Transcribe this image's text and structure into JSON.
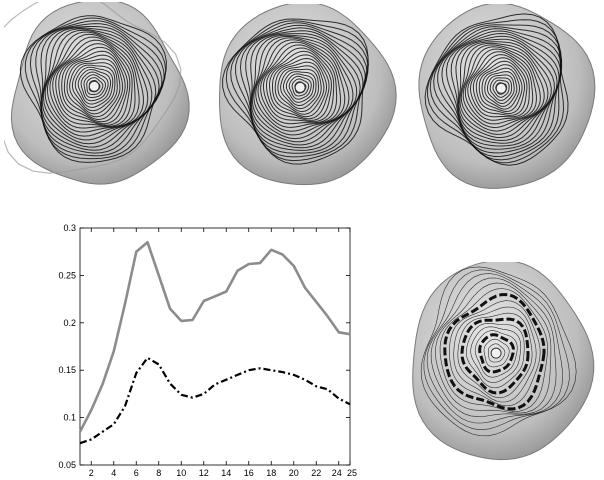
{
  "figure": {
    "renders": [
      {
        "panel": "top-left",
        "style": "surface with dense black contour lines, ragged/folded boundary"
      },
      {
        "panel": "top-middle",
        "style": "surface with dense black contour lines, smooth boundary"
      },
      {
        "panel": "top-right",
        "style": "surface with dense black contour lines, smooth boundary"
      },
      {
        "panel": "bottom-right",
        "style": "surface with thin contour lines and thick black ring contours"
      }
    ],
    "colors": {
      "surface": "#a6a6a6",
      "surface_light": "#e6e6e6",
      "contour": "#111111",
      "gray_series": "#8c8c8c"
    }
  },
  "chart_data": {
    "type": "line",
    "title": "",
    "xlabel": "",
    "ylabel": "",
    "xlim": [
      1,
      25
    ],
    "ylim": [
      0.05,
      0.3
    ],
    "xticks": [
      "2",
      "4",
      "6",
      "8",
      "10",
      "12",
      "14",
      "16",
      "18",
      "20",
      "22",
      "24",
      "25"
    ],
    "yticks": [
      "0.05",
      "0.1",
      "0.15",
      "0.2",
      "0.25",
      "0.3"
    ],
    "legend": "none",
    "grid": false,
    "x": [
      1,
      2,
      3,
      4,
      5,
      6,
      7,
      8,
      9,
      10,
      11,
      12,
      13,
      14,
      15,
      16,
      17,
      18,
      19,
      20,
      21,
      22,
      23,
      24,
      25
    ],
    "series": [
      {
        "style": "solid",
        "color": "#8c8c8c",
        "values": [
          0.085,
          0.108,
          0.135,
          0.17,
          0.22,
          0.275,
          0.285,
          0.25,
          0.215,
          0.202,
          0.203,
          0.223,
          0.228,
          0.233,
          0.255,
          0.262,
          0.263,
          0.277,
          0.272,
          0.26,
          0.237,
          0.222,
          0.207,
          0.19,
          0.188
        ]
      },
      {
        "style": "dash-dot",
        "color": "#000000",
        "values": [
          0.073,
          0.077,
          0.085,
          0.093,
          0.112,
          0.147,
          0.163,
          0.156,
          0.136,
          0.124,
          0.121,
          0.125,
          0.135,
          0.14,
          0.145,
          0.15,
          0.152,
          0.15,
          0.148,
          0.145,
          0.14,
          0.133,
          0.13,
          0.12,
          0.114
        ]
      }
    ]
  }
}
